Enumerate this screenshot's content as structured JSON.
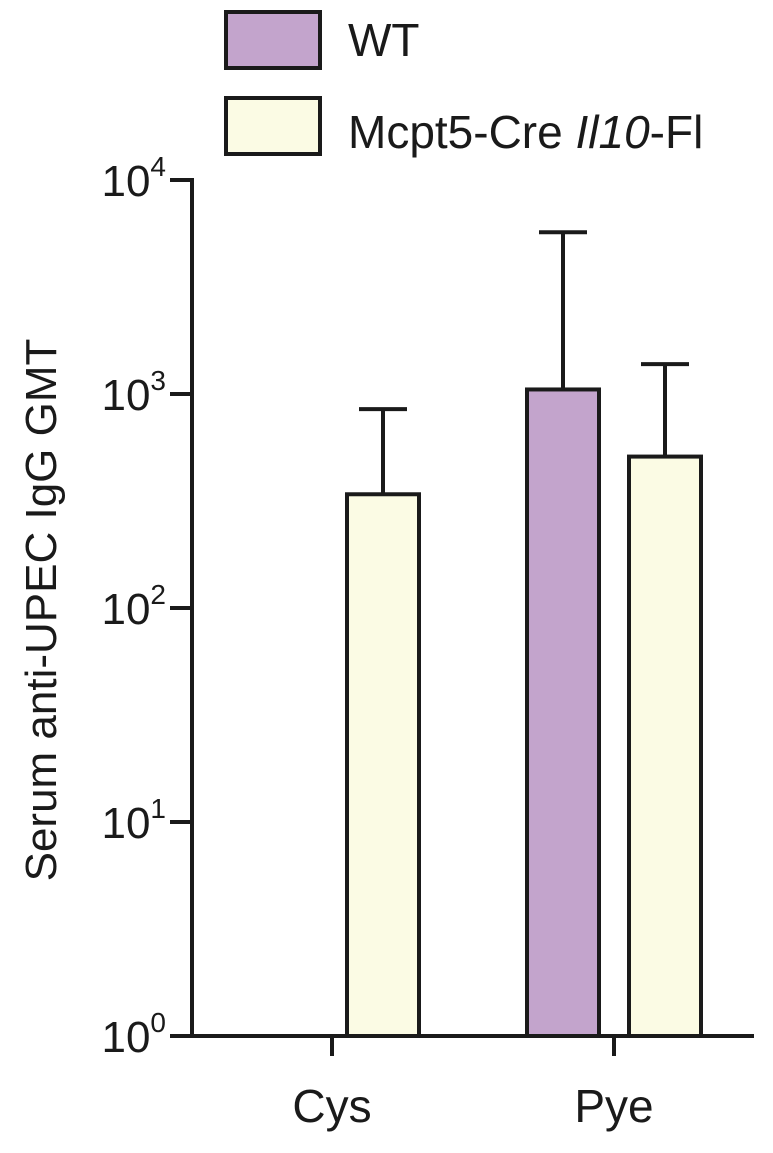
{
  "chart_data": {
    "type": "bar",
    "title": "",
    "xlabel": "",
    "ylabel": "Serum anti-UPEC IgG GMT",
    "yscale": "log",
    "ylim": [
      1,
      10000
    ],
    "yticks": [
      {
        "value": 1,
        "base": "10",
        "exp": "0"
      },
      {
        "value": 10,
        "base": "10",
        "exp": "1"
      },
      {
        "value": 100,
        "base": "10",
        "exp": "2"
      },
      {
        "value": 1000,
        "base": "10",
        "exp": "3"
      },
      {
        "value": 10000,
        "base": "10",
        "exp": "4"
      }
    ],
    "categories": [
      "Cys",
      "Pye"
    ],
    "series": [
      {
        "name": "WT",
        "color": "#c3a4cc",
        "values": [
          null,
          1050
        ],
        "error_upper": [
          null,
          5700
        ]
      },
      {
        "name_parts": [
          "Mcpt5-Cre ",
          "Il10",
          "-Fl"
        ],
        "color": "#fbfbe4",
        "values": [
          340,
          510
        ],
        "error_upper": [
          850,
          1380
        ]
      }
    ],
    "legend_position": "top",
    "grid": false
  }
}
